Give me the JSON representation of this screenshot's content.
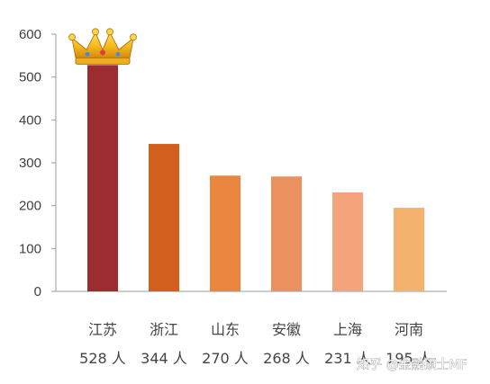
{
  "chart_data": {
    "type": "bar",
    "categories": [
      "江苏",
      "浙江",
      "山东",
      "安徽",
      "上海",
      "河南"
    ],
    "values": [
      528,
      344,
      270,
      268,
      231,
      195
    ],
    "value_labels": [
      "528 人",
      "344 人",
      "270 人",
      "268 人",
      "231 人",
      "195 人"
    ],
    "bar_colors": [
      "#9b2d30",
      "#d2601c",
      "#eb8640",
      "#eb9160",
      "#f4a47a",
      "#f3b36e"
    ],
    "ylim": [
      0,
      600
    ],
    "yticks": [
      0,
      100,
      200,
      300,
      400,
      500,
      600
    ],
    "grid": false,
    "crown_icon": "crown-icon",
    "crown_on_category": "江苏"
  },
  "watermark": {
    "text": "知乎 @金融硕士MF"
  }
}
